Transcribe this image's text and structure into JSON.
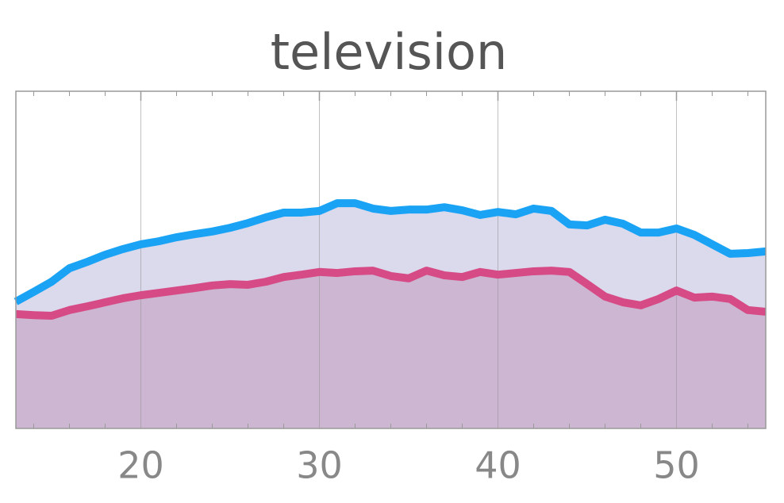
{
  "chart_data": {
    "type": "area",
    "title": "television",
    "x": [
      13,
      14,
      15,
      16,
      17,
      18,
      19,
      20,
      21,
      22,
      23,
      24,
      25,
      26,
      27,
      28,
      29,
      30,
      31,
      32,
      33,
      34,
      35,
      36,
      37,
      38,
      39,
      40,
      41,
      42,
      43,
      44,
      45,
      46,
      47,
      48,
      49,
      50,
      51,
      52,
      53,
      54,
      55
    ],
    "series": [
      {
        "color": "#1aa3f5",
        "fill": "#dbd9ec",
        "values": [
          37.6,
          40.5,
          43.5,
          47.5,
          49.4,
          51.5,
          53.2,
          54.6,
          55.5,
          56.7,
          57.6,
          58.4,
          59.5,
          60.9,
          62.6,
          64,
          64,
          64.5,
          66.8,
          66.8,
          65.2,
          64.5,
          64.9,
          64.9,
          65.6,
          64.7,
          63.3,
          64.2,
          63.5,
          65.2,
          64.5,
          60.5,
          60.2,
          61.9,
          60.7,
          58.1,
          58.1,
          59.3,
          57.4,
          54.6,
          51.8,
          52,
          52.5
        ]
      },
      {
        "color": "#d64b86",
        "fill": "#cdb6d2",
        "values": [
          33.9,
          33.6,
          33.4,
          35.1,
          36.2,
          37.4,
          38.6,
          39.5,
          40.2,
          40.9,
          41.6,
          42.4,
          42.8,
          42.6,
          43.5,
          44.9,
          45.6,
          46.4,
          46.1,
          46.6,
          46.8,
          45.2,
          44.5,
          46.8,
          45.4,
          44.9,
          46.4,
          45.6,
          46.1,
          46.6,
          46.8,
          46.4,
          42.8,
          39.1,
          37.4,
          36.5,
          38.4,
          40.9,
          38.8,
          39.1,
          38.4,
          35.1,
          34.6
        ]
      }
    ],
    "xlim": [
      13,
      55
    ],
    "ylim": [
      0,
      100
    ],
    "xticks": [
      20,
      30,
      40,
      50
    ],
    "xminor_ticks": [
      14,
      16,
      18,
      22,
      24,
      26,
      28,
      32,
      34,
      36,
      38,
      42,
      44,
      46,
      48,
      52,
      54
    ],
    "grid": true
  }
}
